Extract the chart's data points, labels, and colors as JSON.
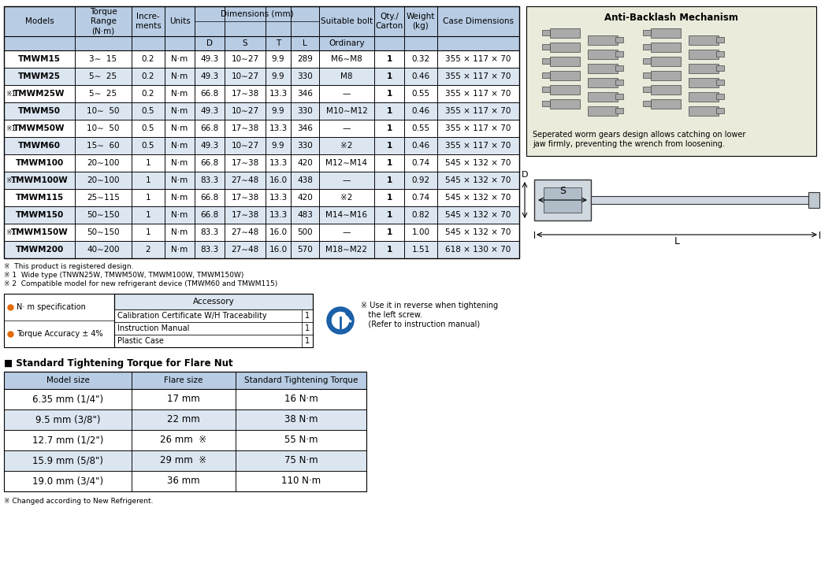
{
  "bg_color": "#ffffff",
  "header_color": "#b8cce4",
  "row_color_light": "#dce6f1",
  "row_color_white": "#ffffff",
  "border_color": "#000000",
  "main_table": {
    "rows": [
      {
        "prefix": "",
        "model": "TMWM15",
        "torque": "3∼  15",
        "incr": "0.2",
        "unit": "N·m",
        "D": "49.3",
        "S": "10∼27",
        "T": "9.9",
        "L": "289",
        "bolt": "M6∼M8",
        "qty": "1",
        "wt": "0.32",
        "case": "355 × 117 × 70",
        "shade": false
      },
      {
        "prefix": "",
        "model": "TMWM25",
        "torque": "5∼  25",
        "incr": "0.2",
        "unit": "N·m",
        "D": "49.3",
        "S": "10∼27",
        "T": "9.9",
        "L": "330",
        "bolt": "M8",
        "qty": "1",
        "wt": "0.46",
        "case": "355 × 117 × 70",
        "shade": true
      },
      {
        "prefix": "※1",
        "model": "TMWM25W",
        "torque": "5∼  25",
        "incr": "0.2",
        "unit": "N·m",
        "D": "66.8",
        "S": "17∼38",
        "T": "13.3",
        "L": "346",
        "bolt": "—",
        "qty": "1",
        "wt": "0.55",
        "case": "355 × 117 × 70",
        "shade": false
      },
      {
        "prefix": "",
        "model": "TMWM50",
        "torque": "10∼  50",
        "incr": "0.5",
        "unit": "N·m",
        "D": "49.3",
        "S": "10∼27",
        "T": "9.9",
        "L": "330",
        "bolt": "M10∼M12",
        "qty": "1",
        "wt": "0.46",
        "case": "355 × 117 × 70",
        "shade": true
      },
      {
        "prefix": "※1",
        "model": "TMWM50W",
        "torque": "10∼  50",
        "incr": "0.5",
        "unit": "N·m",
        "D": "66.8",
        "S": "17∼38",
        "T": "13.3",
        "L": "346",
        "bolt": "—",
        "qty": "1",
        "wt": "0.55",
        "case": "355 × 117 × 70",
        "shade": false
      },
      {
        "prefix": "",
        "model": "TMWM60",
        "torque": "15∼  60",
        "incr": "0.5",
        "unit": "N·m",
        "D": "49.3",
        "S": "10∼27",
        "T": "9.9",
        "L": "330",
        "bolt": "※2",
        "qty": "1",
        "wt": "0.46",
        "case": "355 × 117 × 70",
        "shade": true
      },
      {
        "prefix": "",
        "model": "TMWM100",
        "torque": "20∼100",
        "incr": "1",
        "unit": "N·m",
        "D": "66.8",
        "S": "17∼38",
        "T": "13.3",
        "L": "420",
        "bolt": "M12∼M14",
        "qty": "1",
        "wt": "0.74",
        "case": "545 × 132 × 70",
        "shade": false
      },
      {
        "prefix": "※1",
        "model": "TMWM100W",
        "torque": "20∼100",
        "incr": "1",
        "unit": "N·m",
        "D": "83.3",
        "S": "27∼48",
        "T": "16.0",
        "L": "438",
        "bolt": "—",
        "qty": "1",
        "wt": "0.92",
        "case": "545 × 132 × 70",
        "shade": true
      },
      {
        "prefix": "",
        "model": "TMWM115",
        "torque": "25∼115",
        "incr": "1",
        "unit": "N·m",
        "D": "66.8",
        "S": "17∼38",
        "T": "13.3",
        "L": "420",
        "bolt": "※2",
        "qty": "1",
        "wt": "0.74",
        "case": "545 × 132 × 70",
        "shade": false
      },
      {
        "prefix": "",
        "model": "TMWM150",
        "torque": "50∼150",
        "incr": "1",
        "unit": "N·m",
        "D": "66.8",
        "S": "17∼38",
        "T": "13.3",
        "L": "483",
        "bolt": "M14∼M16",
        "qty": "1",
        "wt": "0.82",
        "case": "545 × 132 × 70",
        "shade": true
      },
      {
        "prefix": "※1",
        "model": "TMWM150W",
        "torque": "50∼150",
        "incr": "1",
        "unit": "N·m",
        "D": "83.3",
        "S": "27∼48",
        "T": "16.0",
        "L": "500",
        "bolt": "—",
        "qty": "1",
        "wt": "1.00",
        "case": "545 × 132 × 70",
        "shade": false
      },
      {
        "prefix": "",
        "model": "TMWM200",
        "torque": "40∼200",
        "incr": "2",
        "unit": "N·m",
        "D": "83.3",
        "S": "27∼48",
        "T": "16.0",
        "L": "570",
        "bolt": "M18∼M22",
        "qty": "1",
        "wt": "1.51",
        "case": "618 × 130 × 70",
        "shade": true
      }
    ]
  },
  "footnotes": [
    "※  This product is registered design.",
    "※ 1  Wide type (TNWN25W, TMWM50W, TMWM100W, TMWM150W)",
    "※ 2  Compatible model for new refrigerant device (TMWM60 and TMWM115)"
  ],
  "spec_items": [
    "N· m specification",
    "Torque Accuracy ± 4%"
  ],
  "accessory_header": "Accessory",
  "accessory_items": [
    [
      "Calibration Certificate W/H Traceability",
      "1"
    ],
    [
      "Instruction Manual",
      "1"
    ],
    [
      "Plastic Case",
      "1"
    ]
  ],
  "reverse_note": "※ Use it in reverse when tightening\n   the left screw.\n   (Refer to instruction manual)",
  "anti_backlash_title": "Anti-Backlash Mechanism",
  "anti_backlash_desc": "Seperated worm gears design allows catching on lower\njaw firmly, preventing the wrench from loosening.",
  "flare_title": "■ Standard Tightening Torque for Flare Nut",
  "flare_headers": [
    "Model size",
    "Flare size",
    "Standard Tightening Torque"
  ],
  "flare_rows": [
    {
      "model": "6.35 mm (1/4\")",
      "flare": "17 mm",
      "flare_note": "",
      "torque": "16 N·m",
      "shade": false
    },
    {
      "model": "9.5 mm (3/8\")",
      "flare": "22 mm",
      "flare_note": "",
      "torque": "38 N·m",
      "shade": true
    },
    {
      "model": "12.7 mm (1/2\")",
      "flare": "26 mm",
      "flare_note": "※",
      "torque": "55 N·m",
      "shade": false
    },
    {
      "model": "15.9 mm (5/8\")",
      "flare": "29 mm",
      "flare_note": "※",
      "torque": "75 N·m",
      "shade": true
    },
    {
      "model": "19.0 mm (3/4\")",
      "flare": "36 mm",
      "flare_note": "",
      "torque": "110 N·m",
      "shade": false
    }
  ],
  "flare_footnote": "※ Changed according to New Refrigerent."
}
